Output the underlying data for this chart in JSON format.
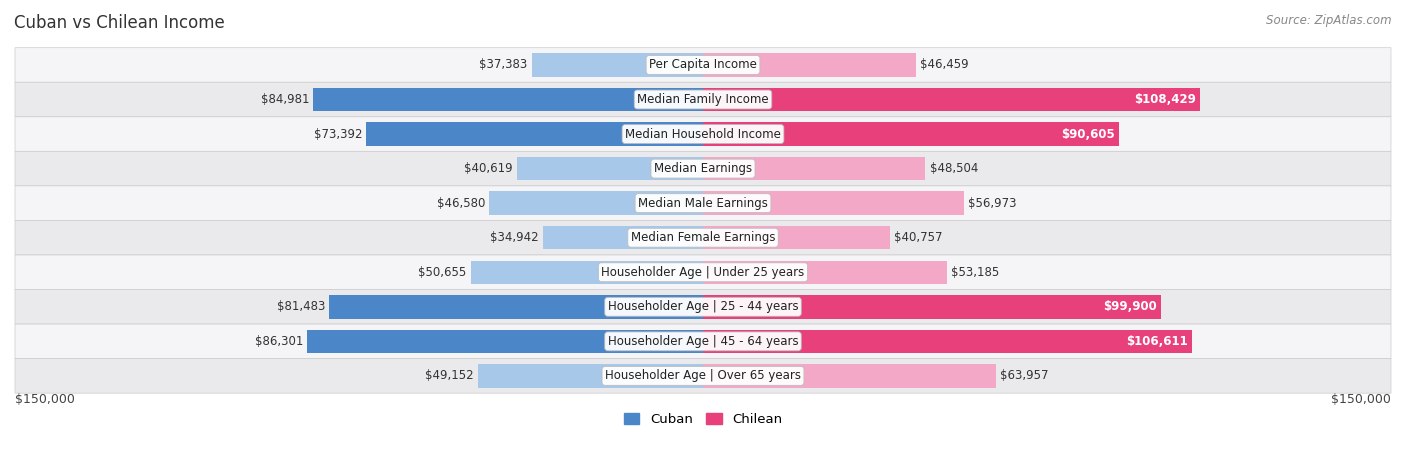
{
  "title": "Cuban vs Chilean Income",
  "source": "Source: ZipAtlas.com",
  "categories": [
    "Per Capita Income",
    "Median Family Income",
    "Median Household Income",
    "Median Earnings",
    "Median Male Earnings",
    "Median Female Earnings",
    "Householder Age | Under 25 years",
    "Householder Age | 25 - 44 years",
    "Householder Age | 45 - 64 years",
    "Householder Age | Over 65 years"
  ],
  "cuban_values": [
    37383,
    84981,
    73392,
    40619,
    46580,
    34942,
    50655,
    81483,
    86301,
    49152
  ],
  "chilean_values": [
    46459,
    108429,
    90605,
    48504,
    56973,
    40757,
    53185,
    99900,
    106611,
    63957
  ],
  "cuban_strong": [
    false,
    true,
    true,
    false,
    false,
    false,
    false,
    true,
    true,
    false
  ],
  "chilean_strong": [
    false,
    true,
    true,
    false,
    false,
    false,
    false,
    true,
    true,
    false
  ],
  "max_value": 150000,
  "cuban_color_strong": "#4a86c8",
  "cuban_color_light": "#a8c8ea",
  "chilean_color_strong": "#e8407a",
  "chilean_color_light": "#f4a8c8",
  "label_dark": "#333333",
  "label_white": "#ffffff",
  "row_bg_odd": "#f5f5f7",
  "row_bg_even": "#eaeaed",
  "xlabel_left": "$150,000",
  "xlabel_right": "$150,000",
  "legend_cuban": "Cuban",
  "legend_chilean": "Chilean",
  "title_fontsize": 12,
  "source_fontsize": 8.5,
  "bar_label_fontsize": 8.5,
  "category_fontsize": 8.5,
  "axis_label_fontsize": 9
}
